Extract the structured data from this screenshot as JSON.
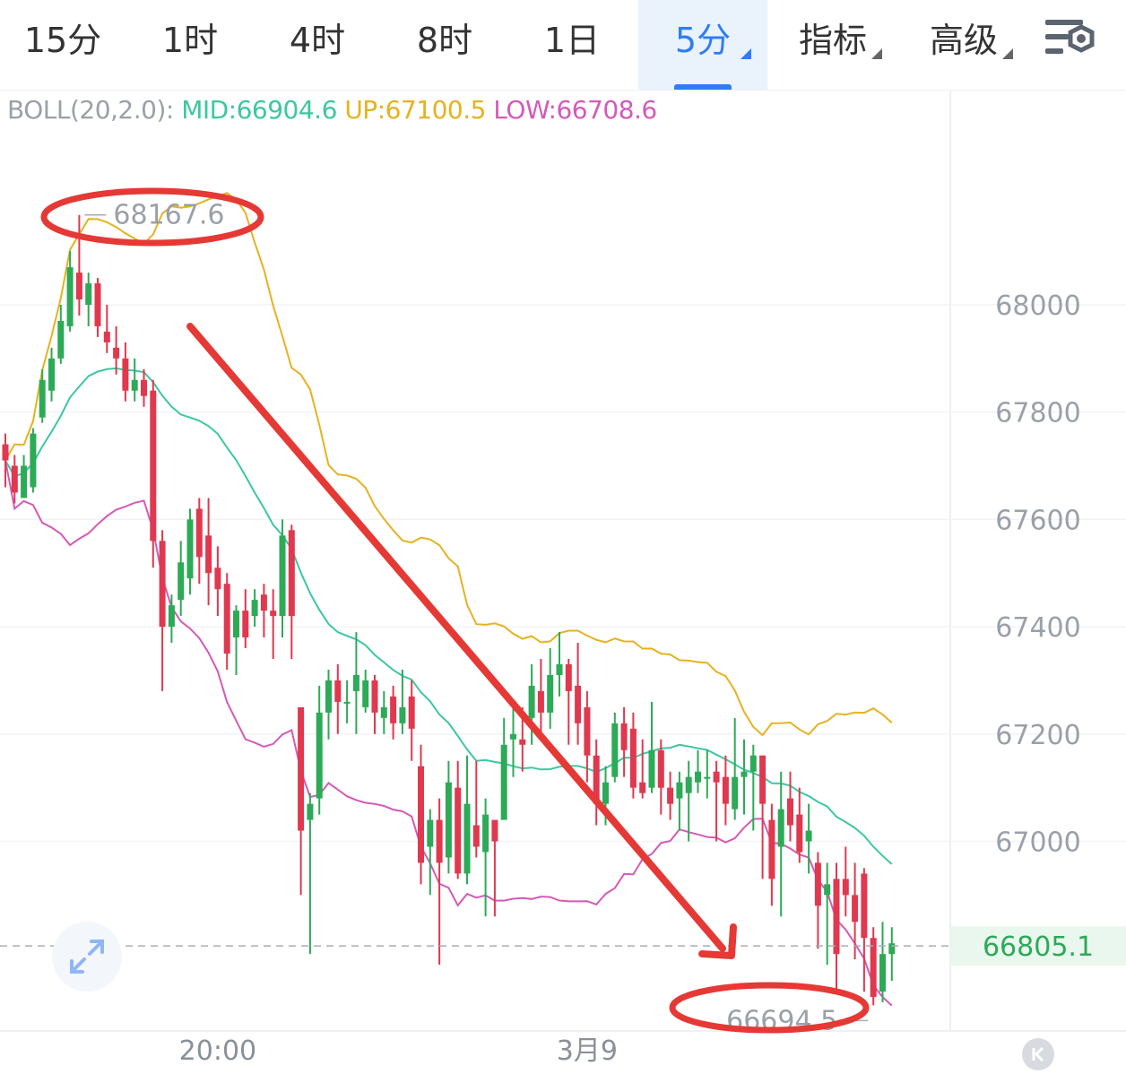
{
  "tabs": [
    {
      "label": "15分",
      "active": false,
      "dropdown": false
    },
    {
      "label": "1时",
      "active": false,
      "dropdown": false
    },
    {
      "label": "4时",
      "active": false,
      "dropdown": false
    },
    {
      "label": "8时",
      "active": false,
      "dropdown": false
    },
    {
      "label": "1日",
      "active": false,
      "dropdown": false
    },
    {
      "label": "5分",
      "active": true,
      "dropdown": true
    },
    {
      "label": "指标",
      "active": false,
      "dropdown": true
    },
    {
      "label": "高级",
      "active": false,
      "dropdown": true
    }
  ],
  "toolbar": {
    "settings_icon": "chart-settings-icon"
  },
  "indicator": {
    "name": "BOLL(20,2.0):",
    "mid": "MID:66904.6",
    "up": "UP:67100.5",
    "low": "LOW:66708.6"
  },
  "colors": {
    "accent": "#2f7cf6",
    "up_candle": "#2daa57",
    "down_candle": "#e0384e",
    "mid_line": "#3cc7a2",
    "up_line": "#e6b21f",
    "low_line": "#d45ab8",
    "annotation": "#e53935",
    "last_price": "#2daa57"
  },
  "chart_data": {
    "type": "candlestick",
    "interval": "5分",
    "y_ticks": [
      68000,
      67800,
      67600,
      67400,
      67200,
      67000
    ],
    "ylim": [
      66620,
      68600
    ],
    "x_ticks": [
      {
        "label": "20:00",
        "index": 23
      },
      {
        "label": "3月9",
        "index": 63
      }
    ],
    "high_label": "68167.6",
    "low_label": "66694.5",
    "last_price": 66805.1,
    "last_price_label": "66805.1",
    "candles": [
      [
        67740,
        67710,
        67760,
        67660
      ],
      [
        67700,
        67650,
        67720,
        67630
      ],
      [
        67640,
        67700,
        67720,
        67640
      ],
      [
        67660,
        67760,
        67770,
        67650
      ],
      [
        67790,
        67860,
        67880,
        67780
      ],
      [
        67840,
        67900,
        67920,
        67820
      ],
      [
        67900,
        67970,
        68000,
        67890
      ],
      [
        67960,
        68070,
        68100,
        67950
      ],
      [
        68060,
        68010,
        68167.6,
        67980
      ],
      [
        68000,
        68040,
        68060,
        67960
      ],
      [
        68040,
        67960,
        68050,
        67940
      ],
      [
        67950,
        67930,
        68000,
        67910
      ],
      [
        67920,
        67900,
        67960,
        67870
      ],
      [
        67900,
        67840,
        67930,
        67820
      ],
      [
        67840,
        67860,
        67900,
        67820
      ],
      [
        67860,
        67830,
        67880,
        67810
      ],
      [
        67840,
        67560,
        67860,
        67510
      ],
      [
        67560,
        67400,
        67580,
        67280
      ],
      [
        67400,
        67440,
        67460,
        67370
      ],
      [
        67450,
        67520,
        67560,
        67420
      ],
      [
        67490,
        67600,
        67620,
        67460
      ],
      [
        67620,
        67530,
        67640,
        67480
      ],
      [
        67570,
        67500,
        67640,
        67440
      ],
      [
        67510,
        67470,
        67550,
        67420
      ],
      [
        67480,
        67350,
        67500,
        67320
      ],
      [
        67380,
        67430,
        67440,
        67310
      ],
      [
        67430,
        67380,
        67470,
        67360
      ],
      [
        67420,
        67450,
        67470,
        67400
      ],
      [
        67460,
        67430,
        67480,
        67380
      ],
      [
        67430,
        67420,
        67470,
        67340
      ],
      [
        67420,
        67570,
        67600,
        67380
      ],
      [
        67580,
        67420,
        67590,
        67340
      ],
      [
        67250,
        67020,
        67250,
        66900
      ],
      [
        67040,
        67070,
        67090,
        66790
      ],
      [
        67080,
        67240,
        67290,
        67050
      ],
      [
        67240,
        67300,
        67320,
        67190
      ],
      [
        67300,
        67260,
        67330,
        67200
      ],
      [
        67260,
        67260,
        67300,
        67220
      ],
      [
        67280,
        67310,
        67390,
        67200
      ],
      [
        67250,
        67300,
        67320,
        67240
      ],
      [
        67300,
        67240,
        67310,
        67200
      ],
      [
        67230,
        67250,
        67280,
        67200
      ],
      [
        67270,
        67220,
        67290,
        67190
      ],
      [
        67220,
        67250,
        67320,
        67200
      ],
      [
        67270,
        67210,
        67300,
        67150
      ],
      [
        67140,
        66960,
        67180,
        66920
      ],
      [
        66990,
        67040,
        67060,
        66900
      ],
      [
        67040,
        66960,
        67080,
        66770
      ],
      [
        66970,
        67110,
        67150,
        66940
      ],
      [
        67100,
        66940,
        67150,
        66930
      ],
      [
        66940,
        67070,
        67160,
        66920
      ],
      [
        67030,
        66990,
        67150,
        66970
      ],
      [
        66980,
        67050,
        67080,
        66860
      ],
      [
        67040,
        67000,
        67040,
        66860
      ],
      [
        67040,
        67180,
        67230,
        67140
      ],
      [
        67190,
        67200,
        67250,
        67120
      ],
      [
        67190,
        67180,
        67250,
        67130
      ],
      [
        67230,
        67290,
        67330,
        67180
      ],
      [
        67280,
        67240,
        67340,
        67200
      ],
      [
        67240,
        67310,
        67360,
        67210
      ],
      [
        67310,
        67330,
        67390,
        67270
      ],
      [
        67330,
        67280,
        67340,
        67180
      ],
      [
        67290,
        67220,
        67370,
        67180
      ],
      [
        67250,
        67160,
        67280,
        67110
      ],
      [
        67160,
        67070,
        67190,
        67030
      ],
      [
        67070,
        67110,
        67140,
        67030
      ],
      [
        67120,
        67220,
        67240,
        67110
      ],
      [
        67220,
        67170,
        67250,
        67120
      ],
      [
        67210,
        67100,
        67240,
        67080
      ],
      [
        67110,
        67090,
        67190,
        67080
      ],
      [
        67100,
        67170,
        67260,
        67090
      ],
      [
        67170,
        67100,
        67190,
        67050
      ],
      [
        67100,
        67070,
        67130,
        67040
      ],
      [
        67080,
        67110,
        67130,
        67020
      ],
      [
        67090,
        67120,
        67150,
        67000
      ],
      [
        67110,
        67130,
        67170,
        67090
      ],
      [
        67120,
        67120,
        67170,
        67080
      ],
      [
        67130,
        67110,
        67150,
        67000
      ],
      [
        67120,
        67070,
        67160,
        67030
      ],
      [
        67060,
        67120,
        67230,
        67040
      ],
      [
        67120,
        67130,
        67190,
        67050
      ],
      [
        67130,
        67160,
        67180,
        67020
      ],
      [
        67160,
        67070,
        67160,
        66930
      ],
      [
        67040,
        66930,
        67070,
        66880
      ],
      [
        66990,
        67060,
        67130,
        66860
      ],
      [
        67080,
        67030,
        67130,
        67000
      ],
      [
        67050,
        66980,
        67100,
        66960
      ],
      [
        67000,
        67020,
        67070,
        66940
      ],
      [
        66960,
        66880,
        66980,
        66800
      ],
      [
        66900,
        66920,
        66960,
        66770
      ],
      [
        66930,
        66790,
        66960,
        66720
      ],
      [
        66930,
        66900,
        66990,
        66860
      ],
      [
        66900,
        66850,
        66960,
        66780
      ],
      [
        66940,
        66820,
        66950,
        66720
      ],
      [
        66820,
        66710,
        66840,
        66694.5
      ],
      [
        66720,
        66790,
        66850,
        66700
      ],
      [
        66790,
        66810,
        66840,
        66740
      ]
    ]
  }
}
